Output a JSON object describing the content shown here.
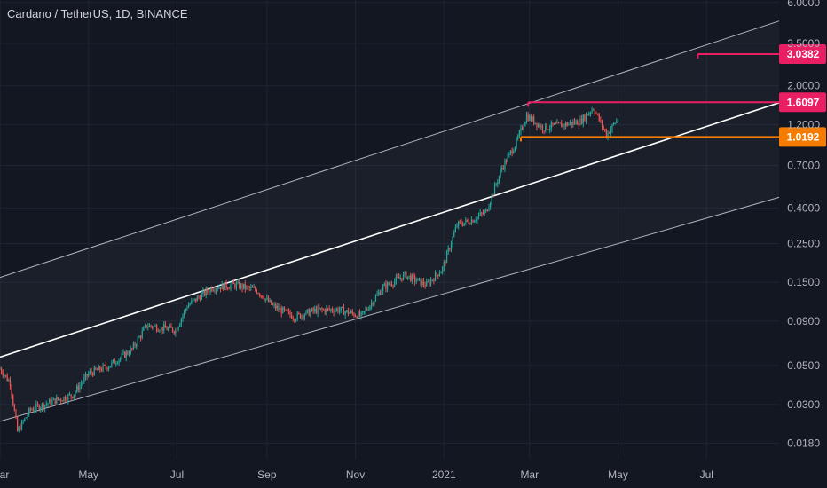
{
  "title": "Cardano / TetherUS, 1D, BINANCE",
  "colors": {
    "background": "#131722",
    "grid": "#1f2433",
    "up": "#26a69a",
    "down": "#ef5350",
    "channel_outer": "#b2b5be",
    "channel_mid": "#ffffff",
    "level_magenta": "#e91e63",
    "level_orange": "#f57c00",
    "axis_text": "#b2b5be"
  },
  "chart_data": {
    "type": "line",
    "title": "Cardano / TetherUS, 1D, BINANCE",
    "y_scale": "log",
    "ylim": [
      0.0145,
      6.2
    ],
    "xlim": [
      "2020-03-01",
      "2021-08-20"
    ],
    "y_ticks": [
      "6.0000",
      "3.5000",
      "2.0000",
      "1.2000",
      "0.7000",
      "0.4000",
      "0.2500",
      "0.1500",
      "0.0900",
      "0.0500",
      "0.0300",
      "0.0180"
    ],
    "x_ticks": [
      {
        "date": "2020-03-01",
        "label": "Mar"
      },
      {
        "date": "2020-05-01",
        "label": "May"
      },
      {
        "date": "2020-07-01",
        "label": "Jul"
      },
      {
        "date": "2020-09-01",
        "label": "Sep"
      },
      {
        "date": "2020-11-01",
        "label": "Nov"
      },
      {
        "date": "2021-01-01",
        "label": "2021"
      },
      {
        "date": "2021-03-01",
        "label": "Mar"
      },
      {
        "date": "2021-05-01",
        "label": "May"
      },
      {
        "date": "2021-07-01",
        "label": "Jul"
      }
    ],
    "price_path": [
      [
        "2020-03-01",
        0.048
      ],
      [
        "2020-03-08",
        0.04
      ],
      [
        "2020-03-13",
        0.021
      ],
      [
        "2020-03-22",
        0.028
      ],
      [
        "2020-04-05",
        0.031
      ],
      [
        "2020-04-20",
        0.034
      ],
      [
        "2020-05-01",
        0.045
      ],
      [
        "2020-05-15",
        0.05
      ],
      [
        "2020-05-31",
        0.062
      ],
      [
        "2020-06-10",
        0.085
      ],
      [
        "2020-06-30",
        0.08
      ],
      [
        "2020-07-08",
        0.11
      ],
      [
        "2020-07-25",
        0.14
      ],
      [
        "2020-08-10",
        0.145
      ],
      [
        "2020-08-25",
        0.135
      ],
      [
        "2020-09-05",
        0.11
      ],
      [
        "2020-09-20",
        0.095
      ],
      [
        "2020-10-05",
        0.104
      ],
      [
        "2020-10-20",
        0.105
      ],
      [
        "2020-11-05",
        0.096
      ],
      [
        "2020-11-20",
        0.14
      ],
      [
        "2020-12-05",
        0.165
      ],
      [
        "2020-12-20",
        0.145
      ],
      [
        "2020-12-31",
        0.18
      ],
      [
        "2021-01-10",
        0.32
      ],
      [
        "2021-01-20",
        0.34
      ],
      [
        "2021-01-30",
        0.38
      ],
      [
        "2021-02-10",
        0.68
      ],
      [
        "2021-02-20",
        0.95
      ],
      [
        "2021-02-27",
        1.35
      ],
      [
        "2021-03-10",
        1.15
      ],
      [
        "2021-03-25",
        1.2
      ],
      [
        "2021-04-05",
        1.25
      ],
      [
        "2021-04-14",
        1.5
      ],
      [
        "2021-04-23",
        1.05
      ],
      [
        "2021-05-01",
        1.3
      ]
    ],
    "channel": {
      "start_date": "2020-03-01",
      "end_date": "2021-08-20",
      "upper": [
        0.16,
        4.7
      ],
      "middle": [
        0.056,
        1.6
      ],
      "lower": [
        0.024,
        0.46
      ]
    },
    "levels": [
      {
        "label": "3.0382",
        "value": 3.0382,
        "from": "2021-06-25",
        "color_key": "level_magenta"
      },
      {
        "label": "1.6097",
        "value": 1.6097,
        "from": "2021-02-28",
        "color_key": "level_magenta"
      },
      {
        "label": "1.0192",
        "value": 1.0192,
        "from": "2021-02-23",
        "color_key": "level_orange"
      }
    ]
  }
}
